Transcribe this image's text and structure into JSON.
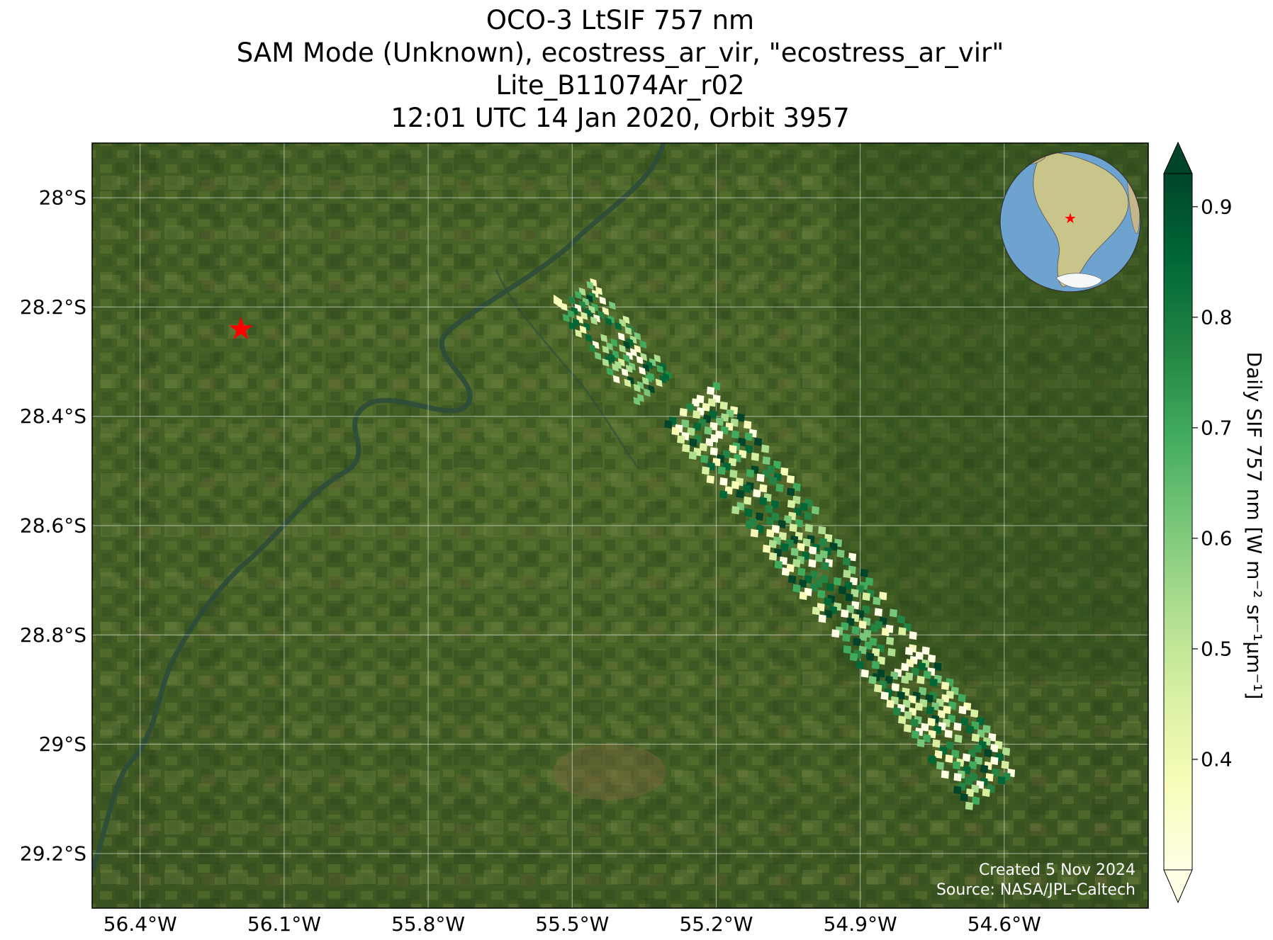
{
  "title_lines": [
    "OCO-3 LtSIF 757 nm",
    "SAM Mode (Unknown), ecostress_ar_vir, \"ecostress_ar_vir\"",
    "Lite_B11074Ar_r02",
    "12:01 UTC 14 Jan 2020, Orbit 3957"
  ],
  "map": {
    "lat_range": [
      -29.3,
      -27.9
    ],
    "lon_range": [
      -56.5,
      -54.3
    ],
    "lat_ticks": [
      -28.0,
      -28.2,
      -28.4,
      -28.6,
      -28.8,
      -29.0,
      -29.2
    ],
    "lat_labels": [
      "28°S",
      "28.2°S",
      "28.4°S",
      "28.6°S",
      "28.8°S",
      "29°S",
      "29.2°S"
    ],
    "lon_ticks": [
      -56.4,
      -56.1,
      -55.8,
      -55.5,
      -55.2,
      -54.9,
      -54.6
    ],
    "lon_labels": [
      "56.4°W",
      "56.1°W",
      "55.8°W",
      "55.5°W",
      "55.2°W",
      "54.9°W",
      "54.6°W"
    ],
    "target_marker": {
      "lon": -56.19,
      "lat": -28.24,
      "color": "#ff0000"
    },
    "swath_segments": [
      {
        "start": [
          -55.49,
          -28.18
        ],
        "end": [
          -55.33,
          -28.35
        ],
        "width_deg": 0.05
      },
      {
        "start": [
          -55.25,
          -28.38
        ],
        "end": [
          -54.62,
          -29.08
        ],
        "width_deg": 0.07
      }
    ],
    "isolated_pixel": {
      "lon": -55.53,
      "lat": -28.19
    }
  },
  "colorbar": {
    "label": "Daily SIF 757 nm [W m⁻² sr⁻¹μm⁻¹]",
    "range": [
      0.3,
      0.93
    ],
    "ticks": [
      0.4,
      0.5,
      0.6,
      0.7,
      0.8,
      0.9
    ],
    "tick_labels": [
      "0.4",
      "0.5",
      "0.6",
      "0.7",
      "0.8",
      "0.9"
    ],
    "extend": "both",
    "colors": [
      "#ffffe5",
      "#f7fcb9",
      "#d9f0a3",
      "#addd8e",
      "#78c679",
      "#41ab5d",
      "#238443",
      "#006837",
      "#004529"
    ]
  },
  "inset": {
    "description_icon": "globe-icon",
    "marker_color": "#ff0000"
  },
  "credits": {
    "created": "Created 5 Nov 2024",
    "source": "Source: NASA/JPL-Caltech"
  }
}
